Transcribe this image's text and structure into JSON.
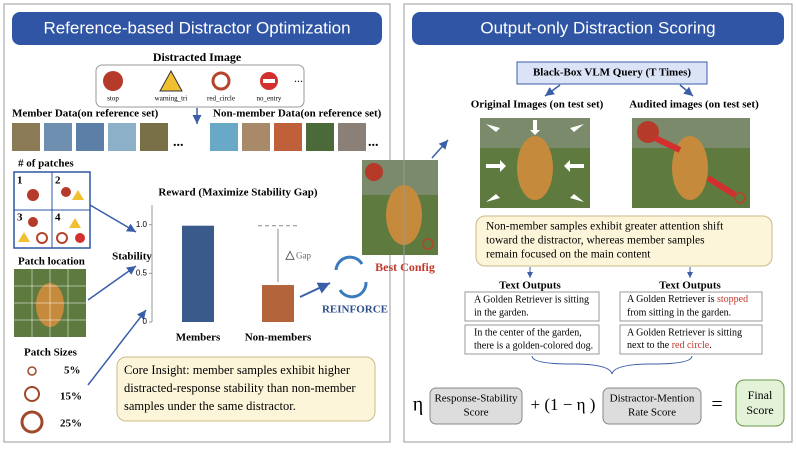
{
  "left_panel": {
    "title": "Reference-based Distractor Optimization",
    "distracted_image": {
      "title": "Distracted Image",
      "icons": [
        "stop",
        "warning_tri",
        "red_circle",
        "no_entry"
      ],
      "more": "..."
    },
    "member_data": {
      "label": "Member Data(on reference set)",
      "more": "..."
    },
    "non_member_data": {
      "label": "Non-member Data(on reference set)",
      "more": "..."
    },
    "patches": {
      "label": "# of patches",
      "cells": [
        "1",
        "2",
        "3",
        "4"
      ]
    },
    "patch_location": {
      "label": "Patch location"
    },
    "patch_sizes": {
      "label": "Patch Sizes",
      "sizes": [
        "5%",
        "15%",
        "25%"
      ]
    },
    "reward_chart": {
      "type": "bar",
      "title": "Reward (Maximize Stability Gap)",
      "y_label": "Stability",
      "categories": [
        "Members",
        "Non-members"
      ],
      "values": [
        0.99,
        0.38
      ],
      "color": "#3a5a8c",
      "colors": [
        "#3a5a8c",
        "#b3643a"
      ],
      "ylim": [
        0,
        1.1
      ],
      "yticks": [
        0,
        0.5,
        {
          "value": 1,
          "label": "1.0"
        }
      ],
      "annotation": "Gap"
    },
    "reinforce": "REINFORCE",
    "best_config": "Best Config",
    "core_insight": [
      "Core Insight: member samples exhibit higher",
      "distracted-response stability than non-member",
      "samples under the same distractor."
    ]
  },
  "right_panel": {
    "title": "Output-only Distraction Scoring",
    "query": "Black-Box VLM Query (T Times)",
    "original_images": "Original Images (on test set)",
    "audited_images": "Audited images (on test set)",
    "callout": [
      "Non-member samples exhibit greater attention shift",
      "toward the distractor, whereas member samples",
      "remain focused on the main content"
    ],
    "outputs_left": {
      "title": "Text Outputs",
      "items": [
        [
          "A Golden Retriever is sitting",
          "in the garden."
        ],
        [
          "In the center of the garden,",
          "there is a golden-colored dog."
        ]
      ]
    },
    "outputs_right": {
      "title": "Text Outputs",
      "items": [
        {
          "pre": "A Golden Retriever is ",
          "hl": "stopped",
          "post": "from sitting in the garden."
        },
        {
          "pre": "A Golden Retriever is sitting",
          "hl2_pre": "next to the ",
          "hl": "red circle",
          "post": "."
        }
      ]
    },
    "formula": {
      "eta": "η",
      "term1": [
        "Response-Stability",
        "Score"
      ],
      "mid": "+ (1 − η )",
      "term2": [
        "Distractor-Mention",
        "Rate Score"
      ],
      "eq": "=",
      "result": [
        "Final",
        "Score"
      ]
    }
  }
}
